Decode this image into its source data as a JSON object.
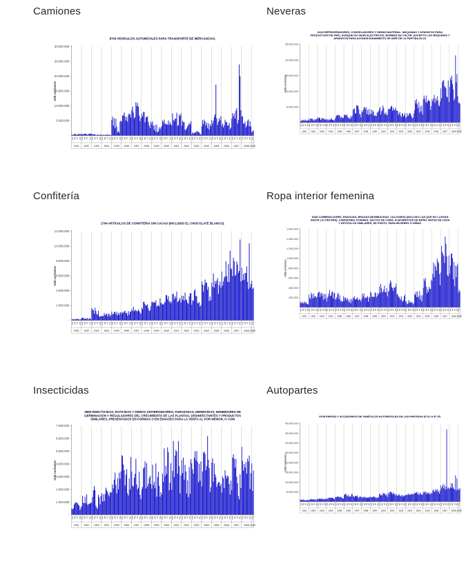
{
  "colors": {
    "bar": "#1212CD",
    "axis": "#808080",
    "year_grid": "#a8a8a8",
    "chart_title_text": "#000033",
    "heading_text": "#262626",
    "tick_text": "#333333",
    "background": "#ffffff"
  },
  "axis_labels": {
    "y_unit": "US$ corrientes",
    "zero_tick": "-",
    "month_ticks": [
      "Ene",
      "Abr",
      "Jul",
      "Oct"
    ]
  },
  "chart_data": [
    {
      "type": "bar",
      "heading": "Camiones",
      "title_lines": [
        "8704 VEHÍCULOS AUTOMÓVILES PARA TRANSPORTE DE MERCANCÍAS."
      ],
      "ylabel": "US$ corrientes",
      "ylim": [
        0,
        30000000
      ],
      "ytick_step": 5000000,
      "years": [
        1991,
        1992,
        1993,
        1994,
        1995,
        1996,
        1997,
        1998,
        1999,
        2000,
        2001,
        2002,
        2003,
        2004,
        2005,
        2006,
        2007,
        2008,
        2009
      ],
      "months_in_last_year": 3,
      "yearly_envelope": [
        [
          150000,
          700000
        ],
        [
          150000,
          900000
        ],
        [
          100000,
          600000
        ],
        [
          50000,
          400000
        ],
        [
          300000,
          6500000
        ],
        [
          3000000,
          8500000
        ],
        [
          3500000,
          11300000
        ],
        [
          2000000,
          8000000
        ],
        [
          500000,
          5200000
        ],
        [
          2500000,
          5600000
        ],
        [
          2000000,
          8700000
        ],
        [
          300000,
          5400000
        ],
        [
          50000,
          1500000
        ],
        [
          1500000,
          6500000
        ],
        [
          2000000,
          7500000
        ],
        [
          2000000,
          5500000
        ],
        [
          3000000,
          10000000
        ],
        [
          2000000,
          6500000
        ],
        [
          1000000,
          5000000
        ]
      ],
      "spikes": [
        {
          "year": 1997,
          "month": 6,
          "value": 11300000
        },
        {
          "year": 2005,
          "month": 6,
          "value": 17200000
        },
        {
          "year": 2007,
          "month": 10,
          "value": 24000000
        },
        {
          "year": 2007,
          "month": 11,
          "value": 20000000
        }
      ],
      "seed": 11
    },
    {
      "type": "bar",
      "heading": "Neveras",
      "title_lines": [
        "8418 REFRIGERADORES, CONGELADORES Y DEMÁS MATERIAL, MÁQUINAS Y APARATOS PARA",
        "PRODUCCIÓN DE FRÍO, AUNQUE NO SEAN ELÉCTRICOS; BOMBAS DE CALOR, EXCEPTO LAS MÁQUINAS Y",
        "APARATOS PARA ACONDICIONAMIENTO DE AIRE DE LA PARTIDA 84.15."
      ],
      "ylabel": "US$ corrientes",
      "ylim": [
        0,
        25000000
      ],
      "ytick_step": 5000000,
      "years": [
        1991,
        1992,
        1993,
        1994,
        1995,
        1996,
        1997,
        1998,
        1999,
        2000,
        2001,
        2002,
        2003,
        2004,
        2005,
        2006,
        2007,
        2008,
        2009
      ],
      "months_in_last_year": 3,
      "yearly_envelope": [
        [
          300000,
          1000000
        ],
        [
          400000,
          1500000
        ],
        [
          500000,
          1800000
        ],
        [
          500000,
          1500000
        ],
        [
          800000,
          2500000
        ],
        [
          1000000,
          2800000
        ],
        [
          1500000,
          5500000
        ],
        [
          2000000,
          5000000
        ],
        [
          1500000,
          4500000
        ],
        [
          2000000,
          5500000
        ],
        [
          3000000,
          5800000
        ],
        [
          1500000,
          4000000
        ],
        [
          1000000,
          3500000
        ],
        [
          2000000,
          7500000
        ],
        [
          3000000,
          9500000
        ],
        [
          4000000,
          9000000
        ],
        [
          5000000,
          13500000
        ],
        [
          6000000,
          15000000
        ],
        [
          5000000,
          7500000
        ]
      ],
      "spikes": [
        {
          "year": 2007,
          "month": 11,
          "value": 13500000
        },
        {
          "year": 2008,
          "month": 9,
          "value": 21500000
        },
        {
          "year": 2008,
          "month": 11,
          "value": 15500000
        }
      ],
      "seed": 22
    },
    {
      "type": "bar",
      "heading": "Confitería",
      "title_lines": [
        "1704 ARTÍCULOS DE CONFITERÍA SIN CACAO (INCLUIDO EL CHOCOLATE BLANCO)."
      ],
      "ylabel": "US$ corrientes",
      "ylim": [
        0,
        12000000
      ],
      "ytick_step": 2000000,
      "years": [
        1991,
        1992,
        1993,
        1994,
        1995,
        1996,
        1997,
        1998,
        1999,
        2000,
        2001,
        2002,
        2003,
        2004,
        2005,
        2006,
        2007,
        2008,
        2009
      ],
      "months_in_last_year": 3,
      "yearly_envelope": [
        [
          50000,
          200000
        ],
        [
          100000,
          400000
        ],
        [
          300000,
          1700000
        ],
        [
          300000,
          1000000
        ],
        [
          500000,
          1300000
        ],
        [
          600000,
          1500000
        ],
        [
          800000,
          2000000
        ],
        [
          1200000,
          2600000
        ],
        [
          1500000,
          3200000
        ],
        [
          1800000,
          3600000
        ],
        [
          2200000,
          4000000
        ],
        [
          2000000,
          3900000
        ],
        [
          1500000,
          4300000
        ],
        [
          2500000,
          5500000
        ],
        [
          3500000,
          6500000
        ],
        [
          4000000,
          8000000
        ],
        [
          4500000,
          8500000
        ],
        [
          4000000,
          8000000
        ],
        [
          4000000,
          6200000
        ]
      ],
      "spikes": [
        {
          "year": 2006,
          "month": 11,
          "value": 9400000
        },
        {
          "year": 2007,
          "month": 11,
          "value": 10900000
        },
        {
          "year": 2008,
          "month": 10,
          "value": 10400000
        }
      ],
      "seed": 33
    },
    {
      "type": "bar",
      "heading": "Ropa interior femenina",
      "title_lines": [
        "6108 COMBINACIONES, ENAGUAS, BRAGAS (BOMBACHAS, CALZONES) (INCLUSO LAS QUE NO LLEGAN",
        "HASTA LA CINTURA), CAMISONES, PIJAMAS, SALTOS DE CAMA, ALBORNOCES DE BAÑO, BATAS DE CASA",
        "Y ARTÍCULOS SIMILARES, DE PUNTO, PARA MUJERES O NIÑAS."
      ],
      "ylabel": "US$ corrientes",
      "ylim": [
        0,
        1600000
      ],
      "ytick_step": 200000,
      "years": [
        1991,
        1992,
        1993,
        1994,
        1995,
        1996,
        1997,
        1998,
        1999,
        2000,
        2001,
        2002,
        2003,
        2004,
        2005,
        2006,
        2007,
        2008,
        2009
      ],
      "months_in_last_year": 3,
      "yearly_envelope": [
        [
          50000,
          120000
        ],
        [
          100000,
          300000
        ],
        [
          150000,
          350000
        ],
        [
          100000,
          450000
        ],
        [
          100000,
          300000
        ],
        [
          80000,
          200000
        ],
        [
          100000,
          250000
        ],
        [
          100000,
          300000
        ],
        [
          150000,
          350000
        ],
        [
          200000,
          500000
        ],
        [
          250000,
          550000
        ],
        [
          100000,
          300000
        ],
        [
          50000,
          150000
        ],
        [
          100000,
          400000
        ],
        [
          200000,
          600000
        ],
        [
          400000,
          1000000
        ],
        [
          600000,
          1300000
        ],
        [
          400000,
          1100000
        ],
        [
          250000,
          450000
        ]
      ],
      "spikes": [
        {
          "year": 2007,
          "month": 7,
          "value": 1450000
        },
        {
          "year": 2007,
          "month": 8,
          "value": 1300000
        }
      ],
      "seed": 44
    },
    {
      "type": "bar",
      "heading": "Insecticidas",
      "title_lines": [
        "3808 INSECTICIDAS, RATICIDAS Y DEMÁS ANTIRROEDORES, FUNGICIDAS, HERBICIDAS, INHIBIDORES DE",
        "GERMINACIÓN Y REGULADORES DEL CRECIMIENTO DE LAS PLANTAS, DESINFECTANTES Y PRODUCTOS",
        "SIMILARES, PRESENTADOS EN FORMAS O EN ENVASES PARA LA VENTA AL POR MENOR, O COM"
      ],
      "ylabel": "US$ corrientes",
      "ylim": [
        0,
        7000000
      ],
      "ytick_step": 1000000,
      "years": [
        1991,
        1992,
        1993,
        1994,
        1995,
        1996,
        1997,
        1998,
        1999,
        2000,
        2001,
        2002,
        2003,
        2004,
        2005,
        2006,
        2007,
        2008,
        2009
      ],
      "months_in_last_year": 3,
      "yearly_envelope": [
        [
          300000,
          1000000
        ],
        [
          500000,
          1700000
        ],
        [
          300000,
          2300000
        ],
        [
          500000,
          2400000
        ],
        [
          800000,
          4000000
        ],
        [
          1000000,
          4700000
        ],
        [
          1000000,
          4400000
        ],
        [
          1200000,
          4300000
        ],
        [
          1000000,
          4500000
        ],
        [
          1500000,
          5300000
        ],
        [
          1200000,
          5800000
        ],
        [
          1000000,
          4500000
        ],
        [
          1500000,
          5000000
        ],
        [
          1000000,
          5500000
        ],
        [
          1500000,
          4500000
        ],
        [
          1500000,
          3500000
        ],
        [
          1000000,
          5300000
        ],
        [
          1500000,
          5600000
        ],
        [
          1300000,
          5600000
        ]
      ],
      "spikes": [
        {
          "year": 2004,
          "month": 8,
          "value": 6200000
        },
        {
          "year": 2001,
          "month": 9,
          "value": 5800000
        }
      ],
      "seed": 55
    },
    {
      "type": "bar",
      "heading": "Autopartes",
      "title_lines": [
        "8708 PARTES Y ACCESORIOS DE VEHÍCULOS AUTOMÓVILES DE LAS PARTIDAS 87.01 A 87.05."
      ],
      "ylabel": "US$ corrientes",
      "ylim": [
        0,
        40000000
      ],
      "ytick_step": 5000000,
      "years": [
        1991,
        1992,
        1993,
        1994,
        1995,
        1996,
        1997,
        1998,
        1999,
        2000,
        2001,
        2002,
        2003,
        2004,
        2005,
        2006,
        2007,
        2008,
        2009
      ],
      "months_in_last_year": 3,
      "yearly_envelope": [
        [
          500000,
          1200000
        ],
        [
          800000,
          1500000
        ],
        [
          800000,
          1800000
        ],
        [
          1000000,
          2200000
        ],
        [
          1500000,
          3000000
        ],
        [
          2000000,
          4500000
        ],
        [
          1500000,
          3500000
        ],
        [
          1500000,
          2800000
        ],
        [
          1800000,
          3000000
        ],
        [
          2500000,
          4800000
        ],
        [
          3000000,
          5200000
        ],
        [
          2500000,
          4000000
        ],
        [
          2500000,
          4500000
        ],
        [
          3000000,
          5000000
        ],
        [
          3500000,
          5500000
        ],
        [
          4000000,
          6500000
        ],
        [
          5000000,
          9000000
        ],
        [
          5000000,
          9500000
        ],
        [
          5000000,
          7500000
        ]
      ],
      "spikes": [
        {
          "year": 2007,
          "month": 9,
          "value": 37000000
        },
        {
          "year": 2008,
          "month": 9,
          "value": 13500000
        },
        {
          "year": 2008,
          "month": 11,
          "value": 12000000
        }
      ],
      "seed": 66
    }
  ]
}
